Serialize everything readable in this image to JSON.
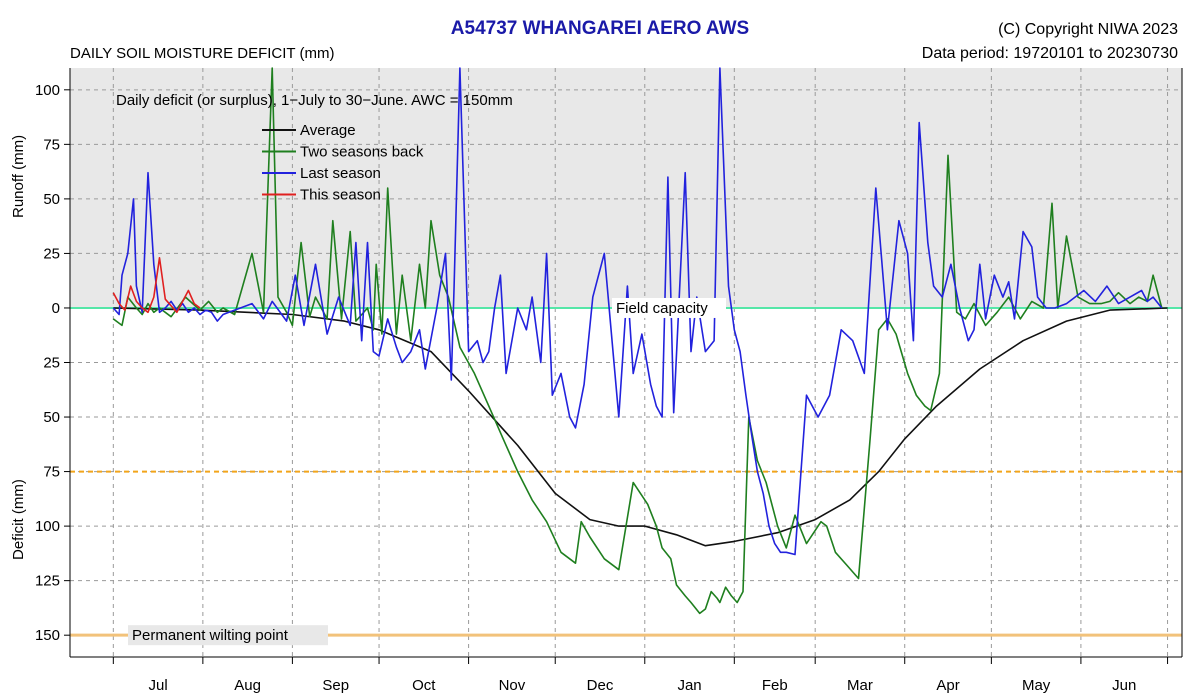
{
  "header": {
    "title": "A54737  WHANGAREI AERO AWS",
    "copyright": "(C) Copyright NIWA  2023",
    "period": "Data period:  19720101  to  20230730",
    "subtitle": "DAILY SOIL MOISTURE DEFICIT (mm)"
  },
  "chart_data": {
    "type": "line",
    "title": "A54737  WHANGAREI AERO AWS",
    "subtitle": "DAILY SOIL MOISTURE DEFICIT (mm)",
    "annotation": "Daily deficit (or surplus), 1−July to 30−June.  AWC = 150mm",
    "ylabel_top": "Runoff (mm)",
    "ylabel_bottom": "Deficit (mm)",
    "xlabel": "",
    "x_unit": "day of season (0 = 1 July)",
    "xlim": [
      -15,
      370
    ],
    "ylim": [
      -160,
      110
    ],
    "y_ticks": [
      100,
      75,
      50,
      25,
      0,
      -25,
      -50,
      -75,
      -100,
      -125,
      -150
    ],
    "y_tick_labels": [
      "100",
      "75",
      "50",
      "25",
      "0",
      "25",
      "50",
      "75",
      "100",
      "125",
      "150"
    ],
    "x_month_labels": [
      "Jul",
      "Aug",
      "Sep",
      "Oct",
      "Nov",
      "Dec",
      "Jan",
      "Feb",
      "Mar",
      "Apr",
      "May",
      "Jun"
    ],
    "x_month_starts": [
      0,
      31,
      62,
      92,
      123,
      153,
      184,
      215,
      243,
      274,
      304,
      335,
      365
    ],
    "reference_lines": [
      {
        "label": "Field capacity",
        "y": 0,
        "color": "#55e6a8"
      },
      {
        "label": "",
        "y": -75,
        "color": "#f2a51a",
        "style": "dashed"
      },
      {
        "label": "Permanent wilting point",
        "y": -150,
        "color": "#f2c27a"
      }
    ],
    "grid": true,
    "shaded_region": {
      "y_from": 0,
      "y_to": 110,
      "color": "#e8e8e8"
    },
    "legend_position": "top-left",
    "series": [
      {
        "name": "Average",
        "color": "#111111",
        "x": [
          0,
          30,
          62,
          80,
          92,
          110,
          123,
          140,
          153,
          165,
          175,
          184,
          195,
          205,
          215,
          230,
          243,
          255,
          265,
          274,
          285,
          300,
          315,
          330,
          345,
          365
        ],
        "y": [
          0,
          -1,
          -3,
          -6,
          -10,
          -20,
          -38,
          -63,
          -85,
          -97,
          -100,
          -100,
          -104,
          -109,
          -107,
          -103,
          -97,
          -88,
          -75,
          -60,
          -45,
          -28,
          -15,
          -6,
          -1,
          0
        ]
      },
      {
        "name": "Two seasons back",
        "color": "#1f7f1f",
        "x": [
          0,
          3,
          5,
          8,
          10,
          12,
          14,
          16,
          20,
          25,
          30,
          33,
          36,
          38,
          42,
          48,
          52,
          55,
          57,
          60,
          62,
          65,
          68,
          70,
          74,
          76,
          79,
          82,
          84,
          88,
          90,
          91,
          93,
          95,
          98,
          100,
          103,
          106,
          108,
          110,
          113,
          116,
          120,
          125,
          130,
          135,
          140,
          145,
          150,
          155,
          160,
          162,
          165,
          170,
          175,
          180,
          185,
          188,
          190,
          193,
          195,
          198,
          200,
          203,
          205,
          207,
          209,
          210,
          212,
          214,
          216,
          218,
          220,
          223,
          226,
          230,
          233,
          236,
          240,
          245,
          247,
          250,
          254,
          258,
          262,
          265,
          268,
          271,
          275,
          278,
          281,
          283,
          286,
          289,
          292,
          295,
          298,
          302,
          306,
          310,
          314,
          318,
          322,
          325,
          327,
          330,
          334,
          338,
          342,
          345,
          348,
          352,
          355,
          358,
          360,
          363
        ],
        "y": [
          -5,
          -8,
          5,
          0,
          -3,
          2,
          -2,
          0,
          -4,
          5,
          -1,
          3,
          -2,
          0,
          -3,
          25,
          -2,
          110,
          5,
          -2,
          -8,
          30,
          -4,
          5,
          -5,
          40,
          -5,
          35,
          -6,
          0,
          -10,
          20,
          -12,
          55,
          -12,
          15,
          -15,
          20,
          0,
          40,
          15,
          5,
          -18,
          -30,
          -45,
          -60,
          -75,
          -88,
          -98,
          -112,
          -117,
          -98,
          -105,
          -115,
          -120,
          -80,
          -90,
          -100,
          -110,
          -115,
          -127,
          -132,
          -135,
          -140,
          -138,
          -130,
          -133,
          -135,
          -128,
          -132,
          -135,
          -130,
          -50,
          -70,
          -80,
          -100,
          -110,
          -95,
          -108,
          -98,
          -100,
          -112,
          -118,
          -124,
          -60,
          -10,
          -5,
          -12,
          -30,
          -40,
          -45,
          -47,
          -30,
          70,
          -2,
          -5,
          2,
          -8,
          -2,
          5,
          -5,
          3,
          0,
          48,
          0,
          33,
          5,
          2,
          2,
          3,
          7,
          2,
          5,
          3,
          15,
          0
        ]
      },
      {
        "name": "Last season",
        "color": "#2222dd",
        "x": [
          0,
          2,
          3,
          5,
          7,
          8,
          10,
          12,
          14,
          16,
          18,
          20,
          22,
          24,
          26,
          28,
          30,
          32,
          34,
          36,
          38,
          40,
          42,
          44,
          48,
          52,
          55,
          60,
          63,
          66,
          70,
          74,
          78,
          82,
          84,
          86,
          88,
          90,
          92,
          95,
          98,
          100,
          103,
          106,
          108,
          112,
          115,
          117,
          118,
          120,
          123,
          126,
          128,
          130,
          132,
          134,
          136,
          140,
          143,
          145,
          148,
          150,
          152,
          155,
          158,
          160,
          163,
          166,
          170,
          175,
          178,
          180,
          183,
          186,
          188,
          190,
          192,
          194,
          198,
          200,
          202,
          205,
          208,
          210,
          213,
          215,
          217,
          219,
          221,
          223,
          225,
          227,
          229,
          231,
          233,
          236,
          240,
          244,
          248,
          252,
          256,
          260,
          264,
          268,
          272,
          275,
          277,
          279,
          282,
          284,
          287,
          290,
          293,
          296,
          298,
          300,
          302,
          305,
          308,
          310,
          312,
          315,
          318,
          320,
          323,
          326,
          330,
          333,
          336,
          340,
          344,
          348,
          352,
          356,
          358,
          360,
          363
        ],
        "y": [
          0,
          -3,
          15,
          25,
          50,
          10,
          -2,
          62,
          20,
          -2,
          0,
          3,
          -1,
          2,
          -2,
          0,
          -3,
          -1,
          -2,
          -6,
          -3,
          -2,
          -1,
          0,
          2,
          -5,
          3,
          -6,
          15,
          -8,
          20,
          -12,
          5,
          -8,
          30,
          -15,
          30,
          -20,
          -22,
          -5,
          -18,
          -25,
          -20,
          -10,
          -28,
          0,
          25,
          -33,
          10,
          110,
          -20,
          -15,
          -25,
          -20,
          0,
          15,
          -30,
          0,
          -10,
          5,
          -25,
          25,
          -40,
          -30,
          -50,
          -55,
          -35,
          5,
          25,
          -50,
          10,
          -30,
          -12,
          -35,
          -45,
          -50,
          60,
          -48,
          62,
          -20,
          5,
          -20,
          -15,
          110,
          10,
          -10,
          -20,
          -40,
          -58,
          -75,
          -85,
          -100,
          -108,
          -112,
          -112,
          -113,
          -40,
          -50,
          -40,
          -10,
          -15,
          -30,
          55,
          -10,
          40,
          25,
          -15,
          85,
          30,
          10,
          5,
          20,
          0,
          -15,
          -10,
          20,
          -5,
          15,
          5,
          12,
          -5,
          35,
          28,
          5,
          0,
          0,
          2,
          5,
          8,
          3,
          10,
          2,
          5,
          8,
          3,
          5,
          0
        ]
      },
      {
        "name": "This season",
        "color": "#e02020",
        "x": [
          0,
          2,
          4,
          6,
          8,
          10,
          12,
          14,
          16,
          18,
          20,
          22,
          24,
          26,
          28,
          30
        ],
        "y": [
          7,
          2,
          -1,
          10,
          3,
          0,
          -2,
          5,
          23,
          4,
          1,
          -2,
          3,
          8,
          2,
          0
        ]
      }
    ]
  }
}
